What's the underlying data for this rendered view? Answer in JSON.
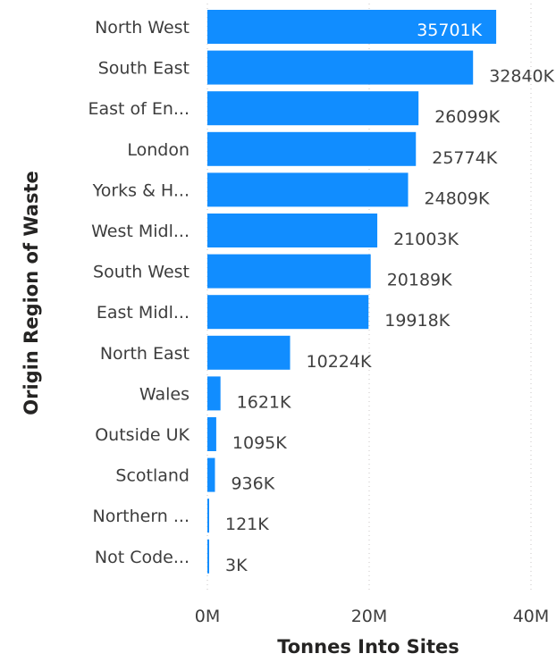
{
  "chart_data": {
    "type": "bar",
    "orientation": "horizontal",
    "xlabel": "Tonnes Into Sites",
    "ylabel": "Origin Region of Waste",
    "categories": [
      "North West",
      "South East",
      "East of En...",
      "London",
      "Yorks & H...",
      "West Midl...",
      "South West",
      "East Midl...",
      "North East",
      "Wales",
      "Outside UK",
      "Scotland",
      "Northern ...",
      "Not Code..."
    ],
    "values": [
      35701000,
      32840000,
      26099000,
      25774000,
      24809000,
      21003000,
      20189000,
      19918000,
      10224000,
      1621000,
      1095000,
      936000,
      121000,
      3000
    ],
    "data_labels": [
      "35701K",
      "32840K",
      "26099K",
      "25774K",
      "24809K",
      "21003K",
      "20189K",
      "19918K",
      "10224K",
      "1621K",
      "1095K",
      "936K",
      "121K",
      "3K"
    ],
    "xlim": [
      0,
      40000000
    ],
    "x_ticks": [
      {
        "value": 0,
        "label": "0M"
      },
      {
        "value": 20000000,
        "label": "20M"
      },
      {
        "value": 40000000,
        "label": "40M"
      }
    ],
    "grid": true,
    "bar_color": "#118DFF"
  }
}
